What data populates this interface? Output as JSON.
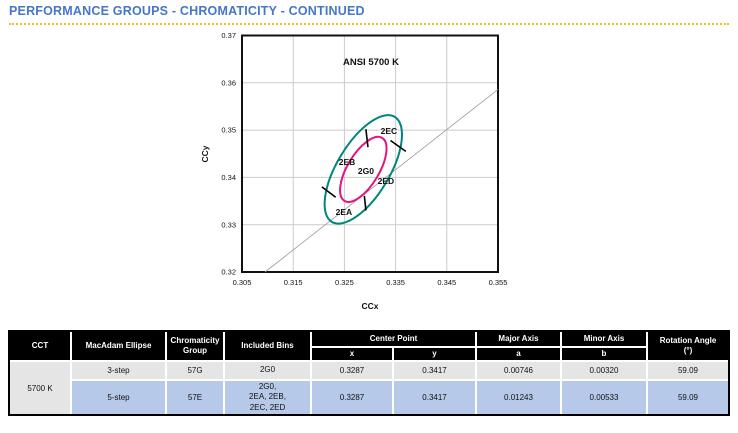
{
  "page": {
    "title": "PERFORMANCE GROUPS - CHROMATICITY - CONTINUED"
  },
  "colors": {
    "title_blue": "#4676C8",
    "accent_gold": "#EFC11E",
    "ellipse_5step_teal": "#00857C",
    "ellipse_3step_magenta": "#E6137F",
    "row_gray": "#E5E5E5",
    "row_blue": "#B7C9E8",
    "header_black": "#000000",
    "grid_gray": "#CBCBCB",
    "locus_gray": "#9A9A9A"
  },
  "chart_data": {
    "type": "scatter",
    "title": "ANSI 5700 K",
    "xlabel": "CCx",
    "ylabel": "CCy",
    "xlim": [
      0.305,
      0.355
    ],
    "ylim": [
      0.32,
      0.37
    ],
    "x_ticks": [
      "0.305",
      "0.315",
      "0.325",
      "0.335",
      "0.345",
      "0.355"
    ],
    "y_ticks": [
      "0.32",
      "0.33",
      "0.34",
      "0.35",
      "0.36",
      "0.37"
    ],
    "grid": true,
    "blackbody_locus_line": {
      "x1": 0.3095,
      "y1": 0.32,
      "x2": 0.355,
      "y2": 0.3586
    },
    "ellipses": [
      {
        "name": "5-step",
        "color": "#00857C",
        "center_x": 0.3287,
        "center_y": 0.3417,
        "a": 0.01243,
        "b": 0.00533,
        "rotation_deg": 59.09
      },
      {
        "name": "3-step",
        "color": "#E6137F",
        "center_x": 0.3287,
        "center_y": 0.3417,
        "a": 0.00746,
        "b": 0.0032,
        "rotation_deg": 59.09
      }
    ],
    "bin_dividers": [
      {
        "x1": 0.3292,
        "y1": 0.3502,
        "x2": 0.3296,
        "y2": 0.3464
      },
      {
        "x1": 0.334,
        "y1": 0.3478,
        "x2": 0.337,
        "y2": 0.3455
      },
      {
        "x1": 0.3289,
        "y1": 0.3361,
        "x2": 0.3292,
        "y2": 0.333
      },
      {
        "x1": 0.3206,
        "y1": 0.338,
        "x2": 0.3233,
        "y2": 0.3358
      }
    ],
    "bin_labels": [
      {
        "label": "2EC",
        "x": 0.3337,
        "y": 0.3498
      },
      {
        "label": "2EB",
        "x": 0.3255,
        "y": 0.3433
      },
      {
        "label": "2G0",
        "x": 0.3292,
        "y": 0.3414
      },
      {
        "label": "2ED",
        "x": 0.3331,
        "y": 0.3392
      },
      {
        "label": "2EA",
        "x": 0.3249,
        "y": 0.3327
      }
    ]
  },
  "table": {
    "headers": {
      "cct": "CCT",
      "macadam": "MacAdam Ellipse",
      "chromaticity_group": "Chromaticity Group",
      "included_bins": "Included Bins",
      "center_point": "Center Point",
      "x": "x",
      "y": "y",
      "major_axis": "Major Axis",
      "a": "a",
      "minor_axis": "Minor Axis",
      "b": "b",
      "rotation_angle": "Rotation Angle",
      "rotation_unit": "(°)"
    },
    "cct_value": "5700 K",
    "rows": [
      {
        "macadam_ellipse": "3-step",
        "chromaticity_group": "57G",
        "included_bins": "2G0",
        "x": "0.3287",
        "y": "0.3417",
        "a": "0.00746",
        "b": "0.00320",
        "rotation": "59.09"
      },
      {
        "macadam_ellipse": "5-step",
        "chromaticity_group": "57E",
        "included_bins": "2G0,\n2EA, 2EB,\n2EC, 2ED",
        "x": "0.3287",
        "y": "0.3417",
        "a": "0.01243",
        "b": "0.00533",
        "rotation": "59.09"
      }
    ]
  }
}
